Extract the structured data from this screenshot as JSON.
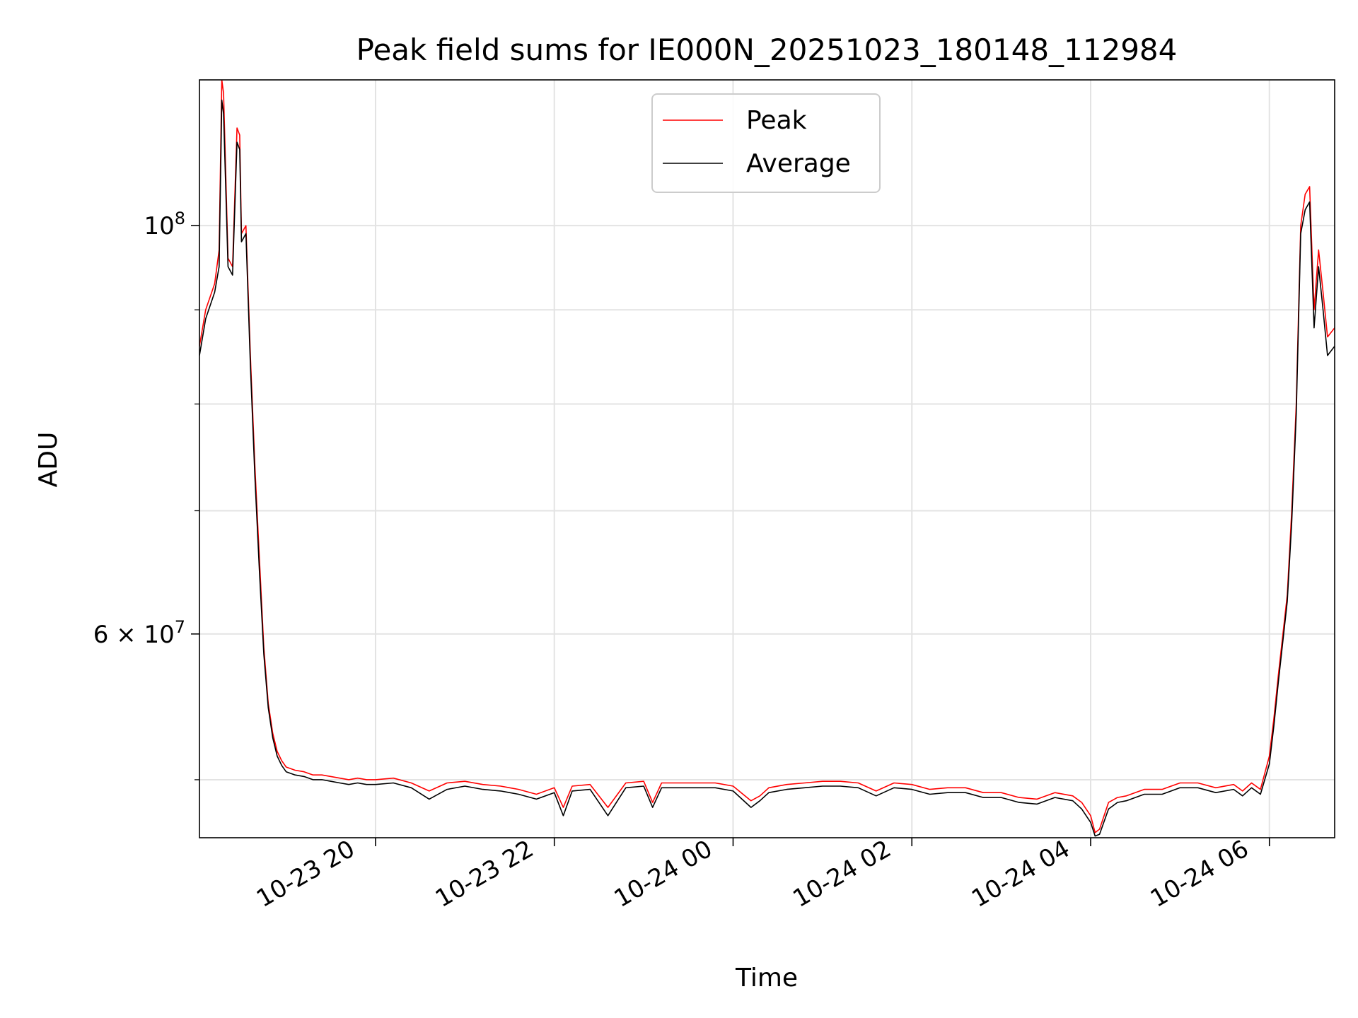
{
  "chart_data": {
    "type": "line",
    "title": "Peak field sums for IE000N_20251023_180148_112984",
    "xlabel": "Time",
    "ylabel": "ADU",
    "y_scale": "log",
    "grid": true,
    "legend_position": "top-center",
    "x_range_hours": [
      18.03,
      6.73
    ],
    "x_range_note": "hours of day: 2025-10-23 18:02 to 2025-10-24 06:44",
    "ylim": [
      46500000,
      120000000
    ],
    "x_ticks": [
      {
        "hour": 20,
        "label": "10-23 20"
      },
      {
        "hour": 22,
        "label": "10-23 22"
      },
      {
        "hour": 24,
        "label": "10-24 00"
      },
      {
        "hour": 26,
        "label": "10-24 02"
      },
      {
        "hour": 28,
        "label": "10-24 04"
      },
      {
        "hour": 30,
        "label": "10-24 06"
      }
    ],
    "y_major_ticks": [
      {
        "value": 100000000,
        "base": "10",
        "exp": "8",
        "prefix": ""
      },
      {
        "value": 60000000,
        "base": "10",
        "exp": "7",
        "prefix": "6 × "
      }
    ],
    "y_minor_ticks": [
      50000000,
      70000000,
      80000000,
      90000000
    ],
    "series": [
      {
        "name": "Peak",
        "color": "#ff0000",
        "hours": [
          18.03,
          18.1,
          18.2,
          18.25,
          18.28,
          18.3,
          18.35,
          18.4,
          18.45,
          18.48,
          18.5,
          18.55,
          18.6,
          18.65,
          18.7,
          18.75,
          18.8,
          18.85,
          18.9,
          18.95,
          19.0,
          19.1,
          19.2,
          19.3,
          19.4,
          19.5,
          19.6,
          19.7,
          19.8,
          19.9,
          20.0,
          20.2,
          20.4,
          20.6,
          20.8,
          21.0,
          21.2,
          21.4,
          21.5,
          21.6,
          21.8,
          22.0,
          22.1,
          22.2,
          22.4,
          22.6,
          22.8,
          23.0,
          23.1,
          23.2,
          23.4,
          23.6,
          23.8,
          24.0,
          24.2,
          24.3,
          24.4,
          24.6,
          24.8,
          25.0,
          25.2,
          25.4,
          25.6,
          25.8,
          26.0,
          26.2,
          26.4,
          26.6,
          26.8,
          27.0,
          27.2,
          27.4,
          27.6,
          27.8,
          27.9,
          28.0,
          28.05,
          28.1,
          28.2,
          28.3,
          28.4,
          28.6,
          28.8,
          29.0,
          29.2,
          29.4,
          29.6,
          29.7,
          29.8,
          29.9,
          30.0,
          30.05,
          30.1,
          30.2,
          30.25,
          30.3,
          30.35,
          30.4,
          30.45,
          30.5,
          30.55,
          30.6,
          30.65,
          30.73
        ],
        "values": [
          86000000,
          90000000,
          93000000,
          97000000,
          120000000,
          118000000,
          96000000,
          95000000,
          113000000,
          112000000,
          99000000,
          100000000,
          85000000,
          74000000,
          66000000,
          59000000,
          55000000,
          53000000,
          51800000,
          51200000,
          50800000,
          50600000,
          50500000,
          50300000,
          50300000,
          50200000,
          50100000,
          50000000,
          50100000,
          50000000,
          50000000,
          50100000,
          49800000,
          49300000,
          49800000,
          49900000,
          49700000,
          49600000,
          49500000,
          49400000,
          49100000,
          49500000,
          48300000,
          49600000,
          49700000,
          48300000,
          49800000,
          49900000,
          48600000,
          49800000,
          49800000,
          49800000,
          49800000,
          49600000,
          48700000,
          49000000,
          49500000,
          49700000,
          49800000,
          49900000,
          49900000,
          49800000,
          49300000,
          49800000,
          49700000,
          49400000,
          49500000,
          49500000,
          49200000,
          49200000,
          48900000,
          48800000,
          49200000,
          49000000,
          48600000,
          47800000,
          46800000,
          47000000,
          48600000,
          48900000,
          49000000,
          49400000,
          49400000,
          49800000,
          49800000,
          49500000,
          49700000,
          49300000,
          49800000,
          49400000,
          51500000,
          54000000,
          57000000,
          63000000,
          70000000,
          80000000,
          100000000,
          104000000,
          105000000,
          90000000,
          97000000,
          92000000,
          87000000,
          88000000
        ]
      },
      {
        "name": "Average",
        "color": "#000000",
        "hours": [
          18.03,
          18.1,
          18.2,
          18.25,
          18.28,
          18.3,
          18.35,
          18.4,
          18.45,
          18.48,
          18.5,
          18.55,
          18.6,
          18.65,
          18.7,
          18.75,
          18.8,
          18.85,
          18.9,
          18.95,
          19.0,
          19.1,
          19.2,
          19.3,
          19.4,
          19.5,
          19.6,
          19.7,
          19.8,
          19.9,
          20.0,
          20.2,
          20.4,
          20.6,
          20.8,
          21.0,
          21.2,
          21.4,
          21.5,
          21.6,
          21.8,
          22.0,
          22.1,
          22.2,
          22.4,
          22.6,
          22.8,
          23.0,
          23.1,
          23.2,
          23.4,
          23.6,
          23.8,
          24.0,
          24.2,
          24.3,
          24.4,
          24.6,
          24.8,
          25.0,
          25.2,
          25.4,
          25.6,
          25.8,
          26.0,
          26.2,
          26.4,
          26.6,
          26.8,
          27.0,
          27.2,
          27.4,
          27.6,
          27.8,
          27.9,
          28.0,
          28.05,
          28.1,
          28.2,
          28.3,
          28.4,
          28.6,
          28.8,
          29.0,
          29.2,
          29.4,
          29.6,
          29.7,
          29.8,
          29.9,
          30.0,
          30.05,
          30.1,
          30.2,
          30.25,
          30.3,
          30.35,
          30.4,
          30.45,
          30.5,
          30.55,
          30.6,
          30.65,
          30.73
        ],
        "values": [
          85000000,
          89000000,
          92000000,
          95000000,
          117000000,
          115000000,
          95000000,
          94000000,
          111000000,
          110000000,
          98000000,
          99000000,
          84000000,
          73000000,
          65000000,
          58500000,
          54700000,
          52700000,
          51500000,
          50900000,
          50500000,
          50300000,
          50200000,
          50000000,
          50000000,
          49900000,
          49800000,
          49700000,
          49800000,
          49700000,
          49700000,
          49800000,
          49500000,
          48800000,
          49400000,
          49600000,
          49400000,
          49300000,
          49200000,
          49100000,
          48800000,
          49200000,
          47800000,
          49300000,
          49400000,
          47800000,
          49500000,
          49600000,
          48300000,
          49500000,
          49500000,
          49500000,
          49500000,
          49300000,
          48300000,
          48700000,
          49200000,
          49400000,
          49500000,
          49600000,
          49600000,
          49500000,
          49000000,
          49500000,
          49400000,
          49100000,
          49200000,
          49200000,
          48900000,
          48900000,
          48600000,
          48500000,
          48900000,
          48700000,
          48200000,
          47400000,
          46600000,
          46700000,
          48200000,
          48600000,
          48700000,
          49100000,
          49100000,
          49500000,
          49500000,
          49200000,
          49400000,
          49000000,
          49500000,
          49100000,
          51000000,
          53500000,
          56500000,
          62500000,
          69000000,
          79000000,
          99000000,
          102000000,
          103000000,
          88000000,
          95000000,
          90000000,
          85000000,
          86000000
        ]
      }
    ]
  }
}
